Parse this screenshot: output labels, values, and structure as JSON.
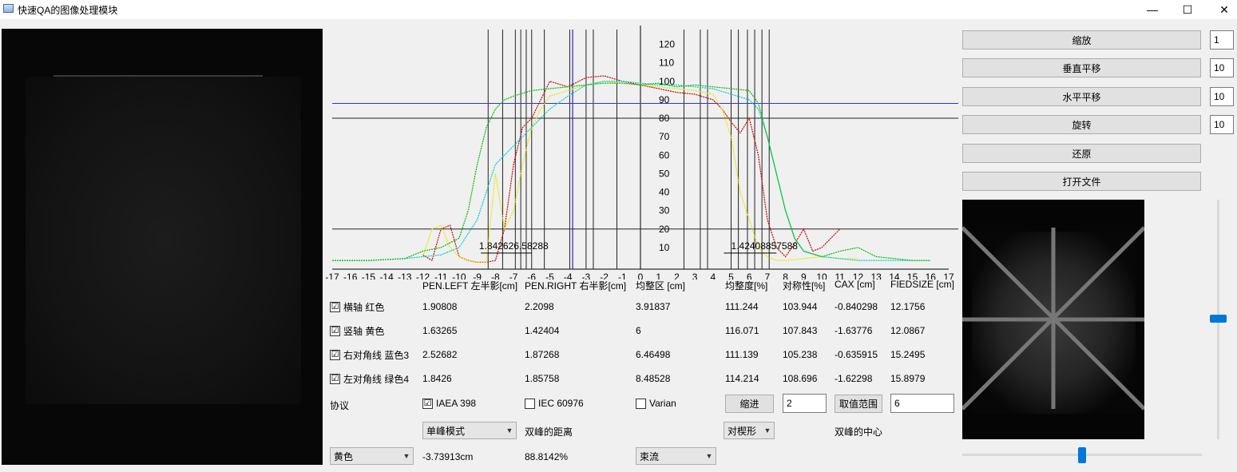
{
  "window": {
    "title": "快速QA的图像处理模块",
    "minimize": "—",
    "maximize": "☐",
    "close": "✕"
  },
  "chart_data": {
    "type": "line",
    "x_ticks": [
      "-17",
      "-16",
      "-15",
      "-14",
      "-13",
      "-12",
      "-11",
      "-10",
      "-9",
      "-8",
      "-7",
      "-6",
      "-5",
      "-4",
      "-3",
      "-2",
      "-1",
      "0",
      "1",
      "2",
      "3",
      "4",
      "5",
      "6",
      "7",
      "8",
      "9",
      "10",
      "11",
      "12",
      "13",
      "14",
      "15",
      "16",
      "17"
    ],
    "y_ticks": [
      "10",
      "20",
      "30",
      "40",
      "50",
      "60",
      "70",
      "80",
      "90",
      "100",
      "110",
      "120"
    ],
    "xlim": [
      -17,
      17
    ],
    "ylim": [
      0,
      125
    ],
    "reference_lines": {
      "black": [
        20,
        80
      ],
      "blue": 88
    },
    "left_marker_text": "1.842626.58288",
    "right_marker_text": "1.42408857588",
    "series": [
      {
        "color": "#cc0000",
        "x": [
          -12,
          -11.5,
          -11,
          -10.5,
          -10,
          -9.5,
          -9,
          -8.5,
          -8,
          -7.5,
          -7,
          -6.5,
          -6,
          -5.5,
          -5,
          -4,
          -3,
          -2,
          -1,
          0,
          1,
          2,
          3,
          4,
          4.5,
          5,
          5.5,
          6,
          6.5,
          7,
          7.5,
          8,
          8.5,
          9,
          9.5,
          10,
          10.5,
          11
        ],
        "y": [
          6,
          3,
          20,
          22,
          5,
          3,
          2,
          2,
          3,
          20,
          55,
          75,
          80,
          90,
          100,
          97,
          102,
          103,
          100,
          98,
          96,
          94,
          93,
          90,
          85,
          78,
          72,
          80,
          60,
          25,
          10,
          5,
          12,
          20,
          8,
          10,
          15,
          20
        ]
      },
      {
        "color": "#e6e600",
        "x": [
          -12,
          -11.5,
          -11,
          -10.5,
          -10,
          -9.5,
          -9,
          -8.5,
          -8,
          -7.5,
          -7,
          -6.5,
          -6,
          -5.5,
          -5,
          -4,
          -3,
          -2,
          -1,
          0,
          1,
          2,
          3,
          4,
          4.5,
          5,
          5.5,
          6,
          6.5,
          7,
          7.5,
          8,
          9,
          10,
          11,
          12
        ],
        "y": [
          5,
          20,
          22,
          10,
          5,
          3,
          2,
          2,
          50,
          20,
          30,
          55,
          75,
          85,
          92,
          95,
          98,
          100,
          99,
          98,
          97,
          96,
          95,
          93,
          85,
          70,
          40,
          25,
          10,
          5,
          3,
          3,
          4,
          5,
          4,
          4
        ]
      },
      {
        "color": "#00cccc",
        "x": [
          -17,
          -15,
          -13,
          -12,
          -11,
          -10,
          -9,
          -8.5,
          -8,
          -7,
          -6,
          -5,
          -4,
          -3,
          -2,
          -1,
          0,
          1,
          2,
          3,
          4,
          5,
          6,
          6.5,
          7,
          7.5,
          8,
          8.5,
          9,
          10,
          11,
          12,
          13,
          14,
          15,
          16
        ],
        "y": [
          3,
          3,
          4,
          5,
          6,
          10,
          25,
          40,
          55,
          65,
          75,
          85,
          92,
          98,
          100,
          100,
          99,
          98,
          98,
          97,
          96,
          93,
          90,
          85,
          70,
          50,
          30,
          15,
          8,
          5,
          4,
          3,
          3,
          3,
          3,
          3
        ]
      },
      {
        "color": "#00bb00",
        "x": [
          -17,
          -15,
          -13,
          -12,
          -11,
          -10,
          -9.5,
          -9,
          -8.5,
          -8,
          -7.5,
          -7,
          -6,
          -5,
          -4,
          -3,
          -2,
          -1,
          0,
          1,
          2,
          3,
          4,
          5,
          6,
          6.5,
          7,
          7.5,
          8,
          8.5,
          9,
          10,
          11,
          12,
          13,
          14,
          15,
          16
        ],
        "y": [
          3,
          3,
          4,
          8,
          10,
          15,
          30,
          55,
          75,
          85,
          90,
          92,
          95,
          96,
          97,
          98,
          99,
          99,
          98,
          99,
          97,
          98,
          97,
          96,
          95,
          88,
          70,
          50,
          30,
          15,
          8,
          5,
          8,
          10,
          5,
          4,
          3,
          3
        ]
      }
    ]
  },
  "table": {
    "headers": [
      "PEN.LEFT 左半影[cm]",
      "PEN.RIGHT 右半影[cm]",
      "均整区 [cm]",
      "均整度[%]",
      "对称性[%]",
      "CAX [cm]",
      "FIEDSIZE [cm]"
    ],
    "rows": [
      {
        "label": "横轴 红色",
        "checked": "☑",
        "values": [
          "1.90808",
          "2.2098",
          "3.91837",
          "111.244",
          "103.944",
          "-0.840298",
          "12.1756"
        ]
      },
      {
        "label": "竖轴 黄色",
        "checked": "☑",
        "values": [
          "1.63265",
          "1.42404",
          "6",
          "116.071",
          "107.843",
          "-1.63776",
          "12.0867"
        ]
      },
      {
        "label": "右对角线 蓝色3",
        "checked": "☑",
        "values": [
          "2.52682",
          "1.87268",
          "6.46498",
          "111.139",
          "105.238",
          "-0.635915",
          "15.2495"
        ]
      },
      {
        "label": "左对角线 绿色4",
        "checked": "☑",
        "values": [
          "1.8426",
          "1.85758",
          "8.48528",
          "114.214",
          "108.696",
          "-1.62298",
          "15.8979"
        ]
      }
    ]
  },
  "protocol": {
    "label": "协议",
    "iaea": {
      "label": "IAEA 398",
      "checked": "☑"
    },
    "iec": {
      "label": "IEC 60976",
      "checked": ""
    },
    "varian": {
      "label": "Varian",
      "checked": ""
    },
    "indent_button": "缩进",
    "indent_value": "2",
    "range_button": "取值范围",
    "range_value": "6"
  },
  "controls": {
    "peak_mode": "单峰模式",
    "peak_distance_label": "双峰的距离",
    "wedge": "对楔形",
    "peak_center_label": "双峰的中心",
    "color_select": "黄色",
    "offset_value": "-3.73913cm",
    "percent_value": "88.8142%",
    "beam_select": "束流"
  },
  "right_panel": {
    "zoom_label": "缩放",
    "zoom_value": "1",
    "vshift_label": "垂直平移",
    "vshift_value": "10",
    "hshift_label": "水平平移",
    "hshift_value": "10",
    "rotate_label": "旋转",
    "rotate_value": "10",
    "restore_label": "还原",
    "open_label": "打开文件"
  }
}
